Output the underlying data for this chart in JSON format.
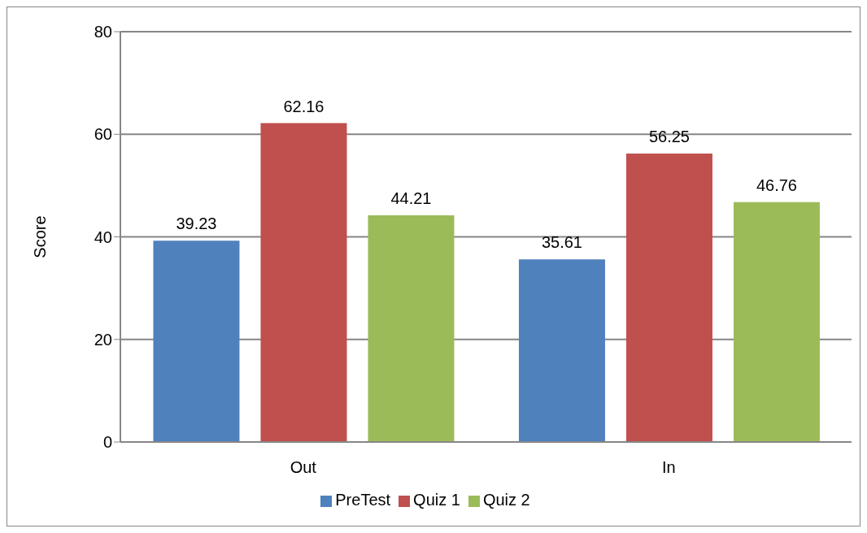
{
  "chart_data": {
    "type": "bar",
    "ylabel": "Score",
    "categories": [
      "Out",
      "In"
    ],
    "series": [
      {
        "name": "PreTest",
        "color": "#4f81bd",
        "values": [
          39.23,
          35.61
        ]
      },
      {
        "name": "Quiz 1",
        "color": "#c0504d",
        "values": [
          62.16,
          56.25
        ]
      },
      {
        "name": "Quiz 2",
        "color": "#9bbb59",
        "values": [
          44.21,
          46.76
        ]
      }
    ],
    "ylim": [
      0,
      80
    ],
    "yticks": [
      0,
      20,
      40,
      60,
      80
    ],
    "grid": "y",
    "legend": "bottom",
    "data_labels": true
  }
}
